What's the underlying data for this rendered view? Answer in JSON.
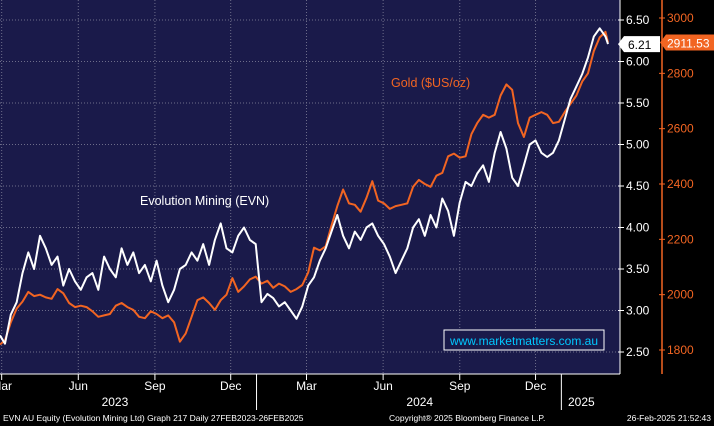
{
  "chart_data": {
    "type": "line",
    "x_type": "date",
    "x_range": [
      "2023-02-27",
      "2025-02-26"
    ],
    "left_axis": {
      "ylim": [
        2.3,
        6.7
      ],
      "ticks": [
        2.5,
        3.0,
        3.5,
        4.0,
        4.5,
        5.0,
        5.5,
        6.0,
        6.5
      ],
      "tick_labels": [
        "2.50",
        "3.00",
        "3.50",
        "4.00",
        "4.50",
        "5.00",
        "5.50",
        "6.00",
        "6.50"
      ]
    },
    "right_axis": {
      "ylim": [
        1795,
        3030
      ],
      "ticks": [
        1800,
        2000,
        2200,
        2400,
        2600,
        2800,
        3000
      ],
      "tick_labels": [
        "1800",
        "2000",
        "2200",
        "2400",
        "2600",
        "2800",
        "3000"
      ]
    },
    "x_ticks": [
      {
        "date": "2023-03-01",
        "label": "Mar"
      },
      {
        "date": "2023-06-01",
        "label": "Jun"
      },
      {
        "date": "2023-09-01",
        "label": "Sep"
      },
      {
        "date": "2023-12-01",
        "label": "Dec"
      },
      {
        "date": "2024-03-01",
        "label": "Mar"
      },
      {
        "date": "2024-06-01",
        "label": "Jun"
      },
      {
        "date": "2024-09-01",
        "label": "Sep"
      },
      {
        "date": "2024-12-01",
        "label": "Dec"
      }
    ],
    "year_labels": [
      {
        "date": "2023-07-15",
        "label": "2023"
      },
      {
        "date": "2024-07-15",
        "label": "2024"
      },
      {
        "date": "2025-01-25",
        "label": "2025"
      }
    ],
    "grid": true,
    "series": [
      {
        "name": "Evolution Mining (EVN)",
        "axis": "left",
        "color": "#ffffff",
        "last_value_label": "6.21",
        "points": [
          [
            "2023-02-27",
            2.7
          ],
          [
            "2023-03-05",
            2.6
          ],
          [
            "2023-03-12",
            2.95
          ],
          [
            "2023-03-19",
            3.1
          ],
          [
            "2023-03-26",
            3.45
          ],
          [
            "2023-04-02",
            3.7
          ],
          [
            "2023-04-09",
            3.5
          ],
          [
            "2023-04-16",
            3.9
          ],
          [
            "2023-04-23",
            3.75
          ],
          [
            "2023-04-30",
            3.55
          ],
          [
            "2023-05-07",
            3.65
          ],
          [
            "2023-05-14",
            3.3
          ],
          [
            "2023-05-21",
            3.5
          ],
          [
            "2023-05-28",
            3.35
          ],
          [
            "2023-06-04",
            3.25
          ],
          [
            "2023-06-11",
            3.4
          ],
          [
            "2023-06-18",
            3.45
          ],
          [
            "2023-06-25",
            3.25
          ],
          [
            "2023-07-02",
            3.65
          ],
          [
            "2023-07-09",
            3.5
          ],
          [
            "2023-07-16",
            3.4
          ],
          [
            "2023-07-23",
            3.75
          ],
          [
            "2023-07-30",
            3.55
          ],
          [
            "2023-08-06",
            3.7
          ],
          [
            "2023-08-13",
            3.45
          ],
          [
            "2023-08-20",
            3.55
          ],
          [
            "2023-08-27",
            3.35
          ],
          [
            "2023-09-03",
            3.6
          ],
          [
            "2023-09-10",
            3.3
          ],
          [
            "2023-09-17",
            3.1
          ],
          [
            "2023-09-24",
            3.25
          ],
          [
            "2023-10-01",
            3.5
          ],
          [
            "2023-10-08",
            3.55
          ],
          [
            "2023-10-15",
            3.7
          ],
          [
            "2023-10-22",
            3.6
          ],
          [
            "2023-10-29",
            3.8
          ],
          [
            "2023-11-05",
            3.55
          ],
          [
            "2023-11-12",
            3.85
          ],
          [
            "2023-11-19",
            4.05
          ],
          [
            "2023-11-26",
            3.75
          ],
          [
            "2023-12-03",
            3.7
          ],
          [
            "2023-12-10",
            3.9
          ],
          [
            "2023-12-17",
            4.0
          ],
          [
            "2023-12-24",
            3.85
          ],
          [
            "2023-12-31",
            3.8
          ],
          [
            "2024-01-07",
            3.1
          ],
          [
            "2024-01-14",
            3.2
          ],
          [
            "2024-01-21",
            3.15
          ],
          [
            "2024-01-28",
            3.05
          ],
          [
            "2024-02-04",
            3.1
          ],
          [
            "2024-02-11",
            3.0
          ],
          [
            "2024-02-18",
            2.9
          ],
          [
            "2024-02-25",
            3.05
          ],
          [
            "2024-03-03",
            3.3
          ],
          [
            "2024-03-10",
            3.4
          ],
          [
            "2024-03-17",
            3.6
          ],
          [
            "2024-03-24",
            3.75
          ],
          [
            "2024-03-31",
            3.95
          ],
          [
            "2024-04-07",
            4.15
          ],
          [
            "2024-04-14",
            3.9
          ],
          [
            "2024-04-21",
            3.75
          ],
          [
            "2024-04-28",
            3.95
          ],
          [
            "2024-05-05",
            3.85
          ],
          [
            "2024-05-12",
            4.0
          ],
          [
            "2024-05-19",
            4.05
          ],
          [
            "2024-05-26",
            3.9
          ],
          [
            "2024-06-02",
            3.8
          ],
          [
            "2024-06-09",
            3.65
          ],
          [
            "2024-06-16",
            3.45
          ],
          [
            "2024-06-23",
            3.6
          ],
          [
            "2024-06-30",
            3.75
          ],
          [
            "2024-07-07",
            4.0
          ],
          [
            "2024-07-14",
            4.1
          ],
          [
            "2024-07-21",
            3.9
          ],
          [
            "2024-07-28",
            4.15
          ],
          [
            "2024-08-04",
            4.0
          ],
          [
            "2024-08-11",
            4.35
          ],
          [
            "2024-08-18",
            4.2
          ],
          [
            "2024-08-25",
            3.9
          ],
          [
            "2024-09-01",
            4.3
          ],
          [
            "2024-09-08",
            4.55
          ],
          [
            "2024-09-15",
            4.5
          ],
          [
            "2024-09-22",
            4.65
          ],
          [
            "2024-09-29",
            4.75
          ],
          [
            "2024-10-06",
            4.55
          ],
          [
            "2024-10-13",
            4.9
          ],
          [
            "2024-10-20",
            5.15
          ],
          [
            "2024-10-27",
            4.95
          ],
          [
            "2024-11-03",
            4.6
          ],
          [
            "2024-11-10",
            4.5
          ],
          [
            "2024-11-17",
            4.75
          ],
          [
            "2024-11-24",
            5.0
          ],
          [
            "2024-12-01",
            5.05
          ],
          [
            "2024-12-08",
            4.9
          ],
          [
            "2024-12-15",
            4.85
          ],
          [
            "2024-12-22",
            4.9
          ],
          [
            "2024-12-29",
            5.05
          ],
          [
            "2025-01-05",
            5.3
          ],
          [
            "2025-01-12",
            5.55
          ],
          [
            "2025-01-19",
            5.7
          ],
          [
            "2025-01-26",
            5.85
          ],
          [
            "2025-02-02",
            6.05
          ],
          [
            "2025-02-09",
            6.3
          ],
          [
            "2025-02-16",
            6.4
          ],
          [
            "2025-02-23",
            6.3
          ],
          [
            "2025-02-26",
            6.21
          ]
        ]
      },
      {
        "name": "Gold ($US/oz)",
        "axis": "right",
        "color": "#f26522",
        "last_value_label": "2911.53",
        "points": [
          [
            "2023-02-27",
            1820
          ],
          [
            "2023-03-05",
            1835
          ],
          [
            "2023-03-12",
            1900
          ],
          [
            "2023-03-19",
            1950
          ],
          [
            "2023-03-26",
            1975
          ],
          [
            "2023-04-02",
            2010
          ],
          [
            "2023-04-09",
            1995
          ],
          [
            "2023-04-16",
            2000
          ],
          [
            "2023-04-23",
            1990
          ],
          [
            "2023-04-30",
            1985
          ],
          [
            "2023-05-07",
            2020
          ],
          [
            "2023-05-14",
            2005
          ],
          [
            "2023-05-21",
            1970
          ],
          [
            "2023-05-28",
            1955
          ],
          [
            "2023-06-04",
            1960
          ],
          [
            "2023-06-11",
            1955
          ],
          [
            "2023-06-18",
            1940
          ],
          [
            "2023-06-25",
            1920
          ],
          [
            "2023-07-02",
            1925
          ],
          [
            "2023-07-09",
            1930
          ],
          [
            "2023-07-16",
            1960
          ],
          [
            "2023-07-23",
            1970
          ],
          [
            "2023-07-30",
            1955
          ],
          [
            "2023-08-06",
            1945
          ],
          [
            "2023-08-13",
            1920
          ],
          [
            "2023-08-20",
            1915
          ],
          [
            "2023-08-27",
            1940
          ],
          [
            "2023-09-03",
            1930
          ],
          [
            "2023-09-10",
            1915
          ],
          [
            "2023-09-17",
            1925
          ],
          [
            "2023-09-24",
            1900
          ],
          [
            "2023-10-01",
            1830
          ],
          [
            "2023-10-08",
            1860
          ],
          [
            "2023-10-15",
            1920
          ],
          [
            "2023-10-22",
            1980
          ],
          [
            "2023-10-29",
            1990
          ],
          [
            "2023-11-05",
            1970
          ],
          [
            "2023-11-12",
            1945
          ],
          [
            "2023-11-19",
            1980
          ],
          [
            "2023-11-26",
            2000
          ],
          [
            "2023-12-03",
            2060
          ],
          [
            "2023-12-10",
            2010
          ],
          [
            "2023-12-17",
            2030
          ],
          [
            "2023-12-24",
            2055
          ],
          [
            "2023-12-31",
            2065
          ],
          [
            "2024-01-07",
            2040
          ],
          [
            "2024-01-14",
            2050
          ],
          [
            "2024-01-21",
            2025
          ],
          [
            "2024-01-28",
            2040
          ],
          [
            "2024-02-04",
            2030
          ],
          [
            "2024-02-11",
            2010
          ],
          [
            "2024-02-18",
            2020
          ],
          [
            "2024-02-25",
            2035
          ],
          [
            "2024-03-03",
            2080
          ],
          [
            "2024-03-10",
            2170
          ],
          [
            "2024-03-17",
            2160
          ],
          [
            "2024-03-24",
            2175
          ],
          [
            "2024-03-31",
            2250
          ],
          [
            "2024-04-07",
            2320
          ],
          [
            "2024-04-14",
            2380
          ],
          [
            "2024-04-21",
            2330
          ],
          [
            "2024-04-28",
            2325
          ],
          [
            "2024-05-05",
            2300
          ],
          [
            "2024-05-12",
            2350
          ],
          [
            "2024-05-19",
            2410
          ],
          [
            "2024-05-26",
            2340
          ],
          [
            "2024-06-02",
            2330
          ],
          [
            "2024-06-09",
            2310
          ],
          [
            "2024-06-16",
            2320
          ],
          [
            "2024-06-23",
            2325
          ],
          [
            "2024-06-30",
            2330
          ],
          [
            "2024-07-07",
            2390
          ],
          [
            "2024-07-14",
            2415
          ],
          [
            "2024-07-21",
            2400
          ],
          [
            "2024-07-28",
            2390
          ],
          [
            "2024-08-04",
            2430
          ],
          [
            "2024-08-11",
            2440
          ],
          [
            "2024-08-18",
            2500
          ],
          [
            "2024-08-25",
            2510
          ],
          [
            "2024-09-01",
            2495
          ],
          [
            "2024-09-08",
            2500
          ],
          [
            "2024-09-15",
            2580
          ],
          [
            "2024-09-22",
            2620
          ],
          [
            "2024-09-29",
            2650
          ],
          [
            "2024-10-06",
            2640
          ],
          [
            "2024-10-13",
            2650
          ],
          [
            "2024-10-20",
            2720
          ],
          [
            "2024-10-27",
            2760
          ],
          [
            "2024-11-03",
            2740
          ],
          [
            "2024-11-10",
            2620
          ],
          [
            "2024-11-17",
            2570
          ],
          [
            "2024-11-24",
            2640
          ],
          [
            "2024-12-01",
            2650
          ],
          [
            "2024-12-08",
            2660
          ],
          [
            "2024-12-15",
            2650
          ],
          [
            "2024-12-22",
            2620
          ],
          [
            "2024-12-29",
            2625
          ],
          [
            "2025-01-05",
            2660
          ],
          [
            "2025-01-12",
            2690
          ],
          [
            "2025-01-19",
            2720
          ],
          [
            "2025-01-26",
            2770
          ],
          [
            "2025-02-02",
            2800
          ],
          [
            "2025-02-09",
            2880
          ],
          [
            "2025-02-16",
            2930
          ],
          [
            "2025-02-23",
            2950
          ],
          [
            "2025-02-26",
            2911.53
          ]
        ]
      }
    ]
  },
  "annotations": {
    "evn_label": "Evolution Mining (EVN)",
    "gold_label": "Gold ($US/oz)",
    "watermark": "www.marketmatters.com.au"
  },
  "footer": {
    "left": "EVN AU Equity (Evolution Mining Ltd) Graph 217  Daily 27FEB2023-26FEB2025",
    "center": "Copyright® 2025 Bloomberg Finance L.P.",
    "right": "26-Feb-2025 21:52:43"
  },
  "colors": {
    "plot_bg": "#1a1a4a",
    "grid": "#6d6d8a",
    "evn": "#ffffff",
    "gold": "#f26522"
  }
}
